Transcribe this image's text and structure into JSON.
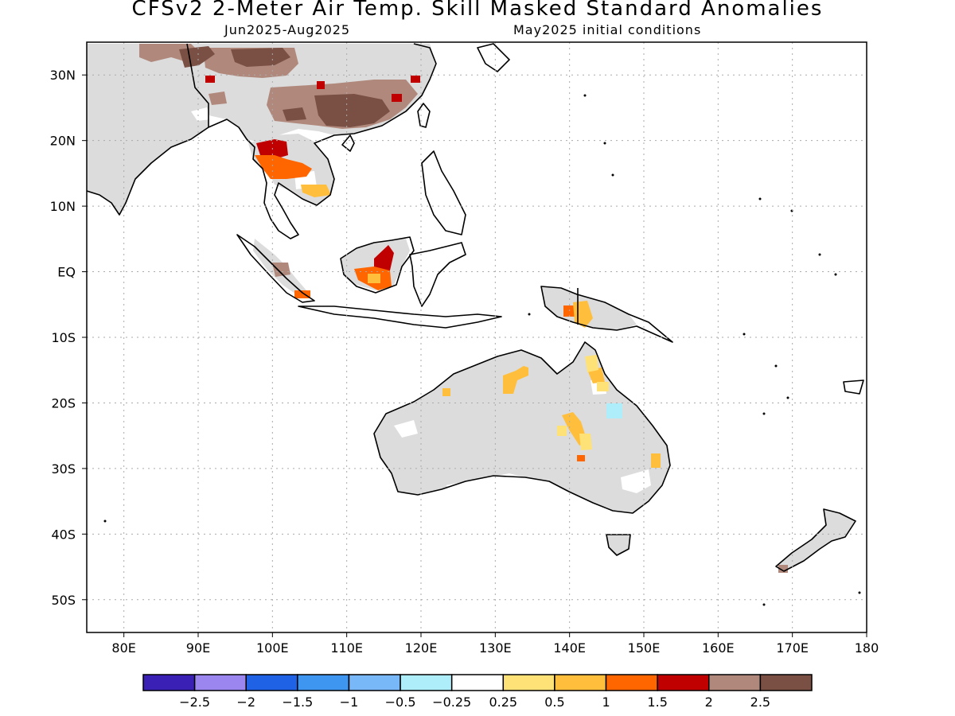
{
  "header": {
    "title": "CFSv2 2-Meter Air Temp. Skill Masked Standard Anomalies",
    "period": "Jun2025-Aug2025",
    "init": "May2025 initial conditions"
  },
  "axes": {
    "lat_labels": [
      "30N",
      "20N",
      "10N",
      "EQ",
      "10S",
      "20S",
      "30S",
      "40S",
      "50S"
    ],
    "lat_values": [
      30,
      20,
      10,
      0,
      -10,
      -20,
      -30,
      -40,
      -50
    ],
    "lon_labels": [
      "80E",
      "90E",
      "100E",
      "110E",
      "120E",
      "130E",
      "140E",
      "150E",
      "160E",
      "170E",
      "180"
    ],
    "lon_values": [
      80,
      90,
      100,
      110,
      120,
      130,
      140,
      150,
      160,
      170,
      180
    ],
    "lon_range": [
      75,
      180
    ],
    "lat_range": [
      -55,
      35
    ],
    "grid": "dotted"
  },
  "colorbar": {
    "colors": [
      "#3a20b4",
      "#9b86f0",
      "#1f62e6",
      "#3f96f0",
      "#78b8f8",
      "#aeeefa",
      "#ffffff",
      "#ffe277",
      "#ffbe3c",
      "#ff6600",
      "#c00000",
      "#b0897c",
      "#7a4f44"
    ],
    "labels": [
      "-2.5",
      "-2",
      "-1.5",
      "-1",
      "-0.5",
      "-0.25",
      "0.25",
      "0.5",
      "1",
      "1.5",
      "2",
      "2.5"
    ]
  },
  "colors": {
    "masked_land": "#dcdcdc",
    "coast": "#000000",
    "grid": "#aaaaaa"
  }
}
